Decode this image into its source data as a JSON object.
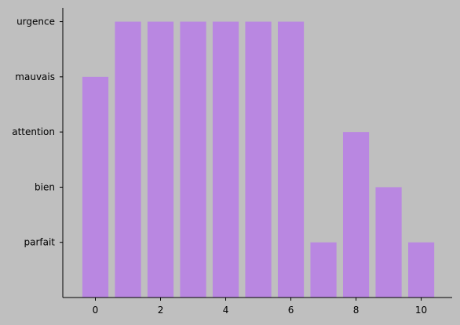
{
  "chart_data": {
    "type": "bar",
    "x": [
      0,
      1,
      2,
      3,
      4,
      5,
      6,
      7,
      8,
      9,
      10
    ],
    "values": [
      4,
      5,
      5,
      5,
      5,
      5,
      5,
      1,
      3,
      2,
      1
    ],
    "category_levels": [
      "parfait",
      "bien",
      "attention",
      "mauvais",
      "urgence"
    ],
    "y_ticks": [
      {
        "value": 1,
        "label": "parfait"
      },
      {
        "value": 2,
        "label": "bien"
      },
      {
        "value": 3,
        "label": "attention"
      },
      {
        "value": 4,
        "label": "mauvais"
      },
      {
        "value": 5,
        "label": "urgence"
      }
    ],
    "x_ticks": [
      {
        "value": 0,
        "label": "0"
      },
      {
        "value": 2,
        "label": "2"
      },
      {
        "value": 4,
        "label": "4"
      },
      {
        "value": 6,
        "label": "6"
      },
      {
        "value": 8,
        "label": "8"
      },
      {
        "value": 10,
        "label": "10"
      }
    ],
    "xlim": [
      -1,
      10.95
    ],
    "ylim": [
      0,
      5.25
    ],
    "title": "",
    "xlabel": "",
    "ylabel": "",
    "grid": false,
    "bar_color": "#b987e1",
    "background_color": "#bfbfbf",
    "axis_color": "#000000"
  }
}
